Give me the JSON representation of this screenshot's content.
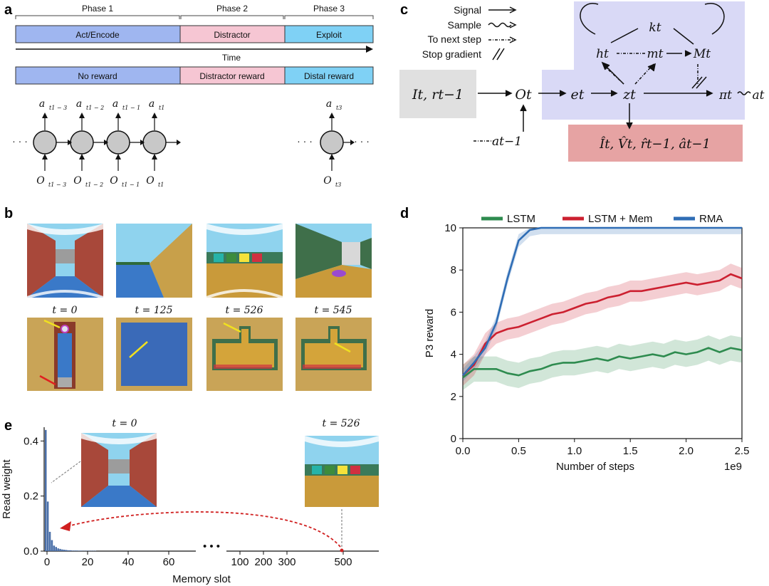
{
  "panels": {
    "a": "a",
    "b": "b",
    "c": "c",
    "d": "d",
    "e": "e"
  },
  "panel_a": {
    "phases": [
      "Phase 1",
      "Phase 2",
      "Phase 3"
    ],
    "bar1": [
      "Act/Encode",
      "Distractor",
      "Exploit"
    ],
    "time_label": "Time",
    "bar2": [
      "No reward",
      "Distractor reward",
      "Distal reward"
    ],
    "actions": [
      "a",
      "a",
      "a",
      "a",
      "a"
    ],
    "action_subs": [
      "t1 − 3",
      "t1 − 2",
      "t1 − 1",
      "t1",
      "t3"
    ],
    "obs": [
      "O",
      "O",
      "O",
      "O",
      "O"
    ],
    "obs_subs": [
      "t1 − 3",
      "t1 − 2",
      "t1 − 1",
      "t1",
      "t3"
    ],
    "ellipsis": "· · ·",
    "colors": {
      "blue": "#9fb6f0",
      "pink": "#f6c6d3",
      "cyan": "#7fd1f5",
      "node": "#c8c8c8"
    }
  },
  "panel_b": {
    "times": [
      "t = 0",
      "t = 125",
      "t = 526",
      "t = 545"
    ]
  },
  "panel_c": {
    "legend": [
      "Signal",
      "Sample",
      "To next step",
      "Stop gradient"
    ],
    "input": "It, rt−1",
    "nodes": {
      "O": "Ot",
      "e": "et",
      "z": "zt",
      "pi": "πt",
      "a": "at",
      "h": "ht",
      "m": "mt",
      "M": "Mt",
      "k": "kt",
      "aprev": "at−1"
    },
    "decoder": "Ît, V̂t, r̂t−1, ât−1",
    "colors": {
      "input": "#e0e0e0",
      "mem": "#d9d9f6",
      "decoder": "#e6a3a3"
    }
  },
  "panel_d": {
    "chart_data": {
      "type": "line",
      "title": "",
      "xlabel": "Number of steps",
      "ylabel": "P3 reward",
      "x_multiplier_label": "1e9",
      "xlim": [
        0,
        2.5
      ],
      "ylim": [
        0,
        10
      ],
      "xticks": [
        "0.0",
        "0.5",
        "1.0",
        "1.5",
        "2.0",
        "2.5"
      ],
      "yticks": [
        "0",
        "2",
        "4",
        "6",
        "8",
        "10"
      ],
      "legend_position": "top",
      "x": [
        0.0,
        0.1,
        0.2,
        0.3,
        0.4,
        0.5,
        0.6,
        0.7,
        0.8,
        0.9,
        1.0,
        1.1,
        1.2,
        1.3,
        1.4,
        1.5,
        1.6,
        1.7,
        1.8,
        1.9,
        2.0,
        2.1,
        2.2,
        2.3,
        2.4,
        2.5
      ],
      "series": [
        {
          "name": "LSTM",
          "color": "#2e8b4f",
          "values": [
            2.9,
            3.3,
            3.3,
            3.3,
            3.1,
            3.0,
            3.2,
            3.3,
            3.5,
            3.6,
            3.6,
            3.7,
            3.8,
            3.7,
            3.9,
            3.8,
            3.9,
            4.0,
            3.9,
            4.1,
            4.0,
            4.1,
            4.3,
            4.1,
            4.3,
            4.2
          ],
          "band": 0.6
        },
        {
          "name": "LSTM + Mem",
          "color": "#cc2030",
          "values": [
            3.0,
            3.5,
            4.5,
            5.0,
            5.2,
            5.3,
            5.5,
            5.7,
            5.9,
            6.0,
            6.2,
            6.4,
            6.5,
            6.7,
            6.8,
            7.0,
            7.0,
            7.1,
            7.2,
            7.3,
            7.4,
            7.3,
            7.4,
            7.5,
            7.8,
            7.6
          ],
          "band": 0.5
        },
        {
          "name": "RMA",
          "color": "#2f6db5",
          "values": [
            3.0,
            3.6,
            4.3,
            5.5,
            7.6,
            9.4,
            9.9,
            10.0,
            10.0,
            10.0,
            10.0,
            10.0,
            10.0,
            10.0,
            10.0,
            10.0,
            10.0,
            10.0,
            10.0,
            10.0,
            10.0,
            10.0,
            10.0,
            10.0,
            10.0,
            10.0
          ],
          "band": 0.3
        }
      ]
    }
  },
  "panel_e": {
    "chart_data": {
      "type": "bar",
      "xlabel": "Memory slot",
      "ylabel": "Read weight",
      "ylim": [
        0,
        0.45
      ],
      "yticks": [
        "0.0",
        "0.2",
        "0.4"
      ],
      "xticks_left": [
        "0",
        "20",
        "40",
        "60"
      ],
      "xticks_right": [
        "100",
        "200",
        "300",
        "500"
      ],
      "values": [
        0.44,
        0.18,
        0.07,
        0.04,
        0.02,
        0.015,
        0.01,
        0.008,
        0.006,
        0.005,
        0.004,
        0.003,
        0.003,
        0.002,
        0.002,
        0.002,
        0.0015,
        0.0015,
        0.001,
        0.001,
        0.001,
        0.001,
        0.001,
        0.001,
        0.001
      ],
      "time_labels": [
        "t = 0",
        "t = 526"
      ],
      "break_mark": "• • •"
    }
  }
}
